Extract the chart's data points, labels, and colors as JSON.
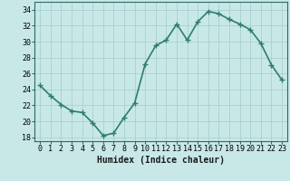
{
  "xlabel": "Humidex (Indice chaleur)",
  "x": [
    0,
    1,
    2,
    3,
    4,
    5,
    6,
    7,
    8,
    9,
    10,
    11,
    12,
    13,
    14,
    15,
    16,
    17,
    18,
    19,
    20,
    21,
    22,
    23
  ],
  "y": [
    24.5,
    23.2,
    22.1,
    21.3,
    21.1,
    19.8,
    18.2,
    18.5,
    20.5,
    22.3,
    27.2,
    29.5,
    30.2,
    32.2,
    30.2,
    32.5,
    33.8,
    33.5,
    32.8,
    32.2,
    31.5,
    29.8,
    27.1,
    25.2
  ],
  "line_color": "#2e7d6e",
  "marker": "+",
  "marker_size": 4,
  "bg_color": "#c8e8e8",
  "grid_color": "#a8d0d0",
  "ylim": [
    17.5,
    35
  ],
  "xlim": [
    -0.5,
    23.5
  ],
  "yticks": [
    18,
    20,
    22,
    24,
    26,
    28,
    30,
    32,
    34
  ],
  "xticks": [
    0,
    1,
    2,
    3,
    4,
    5,
    6,
    7,
    8,
    9,
    10,
    11,
    12,
    13,
    14,
    15,
    16,
    17,
    18,
    19,
    20,
    21,
    22,
    23
  ],
  "tick_label_size": 6,
  "xlabel_size": 7,
  "line_width": 1.2
}
